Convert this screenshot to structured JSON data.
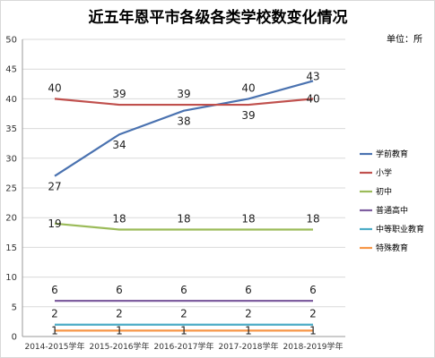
{
  "chart_data": {
    "type": "line",
    "title": "近五年恩平市各级各类学校数变化情况",
    "unit_label": "单位：所",
    "categories": [
      "2014-2015学年",
      "2015-2016学年",
      "2016-2017学年",
      "2017-2018学年",
      "2018-2019学年"
    ],
    "ylim": [
      0,
      50
    ],
    "yticks": [
      0,
      5,
      10,
      15,
      20,
      25,
      30,
      35,
      40,
      45,
      50
    ],
    "grid": true,
    "legend_position": "right",
    "series": [
      {
        "name": "学前教育",
        "color": "#4a72b0",
        "values": [
          27,
          34,
          38,
          40,
          43
        ]
      },
      {
        "name": "小学",
        "color": "#c0504d",
        "values": [
          40,
          39,
          39,
          39,
          40
        ]
      },
      {
        "name": "初中",
        "color": "#9bbb59",
        "values": [
          19,
          18,
          18,
          18,
          18
        ]
      },
      {
        "name": "普通高中",
        "color": "#7f5fa0",
        "values": [
          6,
          6,
          6,
          6,
          6
        ]
      },
      {
        "name": "中等职业教育",
        "color": "#4bacc6",
        "values": [
          2,
          2,
          2,
          2,
          2
        ]
      },
      {
        "name": "特殊教育",
        "color": "#f79646",
        "values": [
          1,
          1,
          1,
          1,
          1
        ]
      }
    ]
  }
}
